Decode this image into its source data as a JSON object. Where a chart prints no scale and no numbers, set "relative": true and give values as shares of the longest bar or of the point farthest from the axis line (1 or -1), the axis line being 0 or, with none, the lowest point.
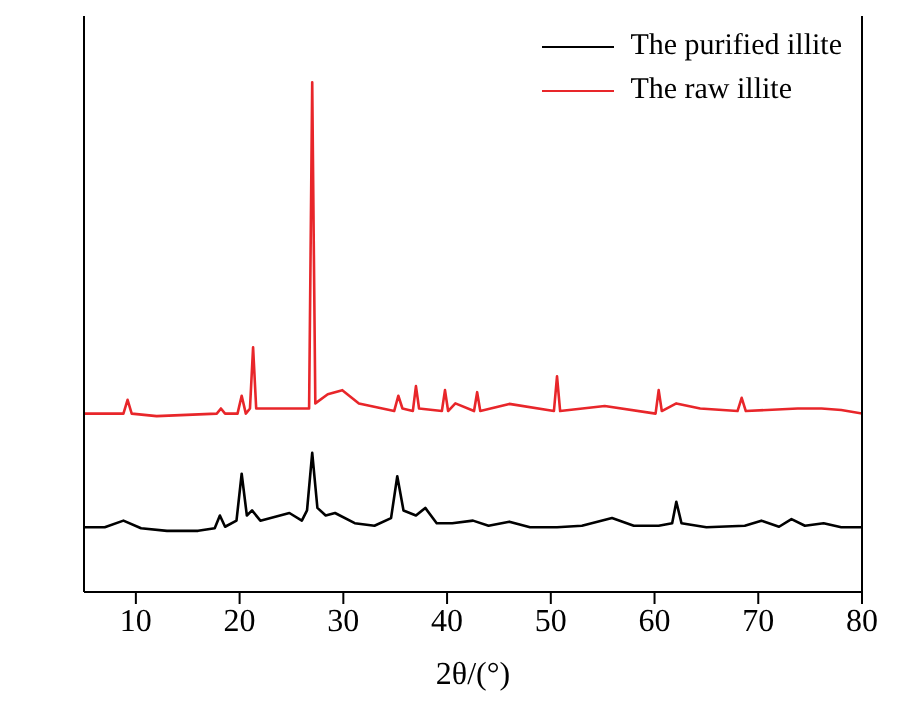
{
  "chart_data": {
    "type": "line",
    "relative": true,
    "xlabel": "2θ/(°)",
    "xlim": [
      5,
      80
    ],
    "xticks": [
      10,
      20,
      30,
      40,
      50,
      60,
      70,
      80
    ],
    "legend": "top right",
    "grid": false,
    "marker": "none",
    "line_style": "solid",
    "series": [
      {
        "name": "The purified illite",
        "color": "#000000",
        "x": [
          5,
          7,
          8.8,
          10.5,
          13,
          16,
          17.6,
          18.1,
          18.6,
          19.7,
          20.2,
          20.7,
          21.2,
          22,
          24.8,
          26,
          26.5,
          27.0,
          27.5,
          28.3,
          29.2,
          31.1,
          33,
          34.6,
          35.2,
          35.8,
          37,
          37.9,
          39,
          40.5,
          42.5,
          44,
          46,
          48,
          50.6,
          53,
          55.9,
          58,
          60.4,
          61.7,
          62.1,
          62.6,
          65,
          68.7,
          70.3,
          72,
          73.2,
          74.5,
          76.3,
          78,
          80
        ],
        "values": [
          0.127,
          0.127,
          0.14,
          0.125,
          0.12,
          0.12,
          0.125,
          0.15,
          0.128,
          0.14,
          0.232,
          0.15,
          0.16,
          0.14,
          0.155,
          0.14,
          0.16,
          0.273,
          0.165,
          0.15,
          0.155,
          0.135,
          0.13,
          0.145,
          0.227,
          0.16,
          0.15,
          0.165,
          0.135,
          0.135,
          0.14,
          0.13,
          0.138,
          0.127,
          0.127,
          0.13,
          0.145,
          0.13,
          0.13,
          0.135,
          0.177,
          0.135,
          0.127,
          0.13,
          0.14,
          0.128,
          0.143,
          0.13,
          0.135,
          0.127,
          0.127
        ]
      },
      {
        "name": "The raw illite",
        "color": "#e8262a",
        "x": [
          5,
          8.8,
          9.2,
          9.6,
          12,
          17.8,
          18.2,
          18.6,
          19.8,
          20.2,
          20.6,
          21.0,
          21.3,
          21.6,
          26.7,
          27.0,
          27.3,
          28.5,
          29.9,
          31.5,
          34.9,
          35.3,
          35.7,
          36.7,
          37.0,
          37.3,
          39.5,
          39.8,
          40.1,
          40.8,
          42.6,
          42.9,
          43.2,
          46,
          50.3,
          50.6,
          50.9,
          55.2,
          60.1,
          60.4,
          60.7,
          62.1,
          64.4,
          68.0,
          68.4,
          68.8,
          73.8,
          76.1,
          78,
          80
        ],
        "values": [
          0.35,
          0.35,
          0.377,
          0.35,
          0.345,
          0.35,
          0.36,
          0.35,
          0.35,
          0.385,
          0.35,
          0.36,
          0.48,
          0.36,
          0.36,
          1,
          0.37,
          0.388,
          0.396,
          0.37,
          0.355,
          0.385,
          0.36,
          0.355,
          0.404,
          0.36,
          0.355,
          0.396,
          0.355,
          0.37,
          0.355,
          0.392,
          0.355,
          0.369,
          0.355,
          0.423,
          0.355,
          0.365,
          0.35,
          0.396,
          0.355,
          0.37,
          0.36,
          0.355,
          0.381,
          0.355,
          0.36,
          0.36,
          0.357,
          0.35
        ]
      }
    ]
  }
}
